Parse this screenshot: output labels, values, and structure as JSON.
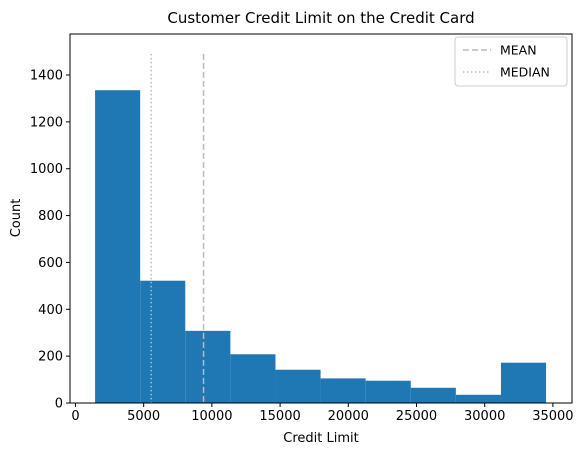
{
  "chart_data": {
    "type": "bar",
    "title": "Customer Credit Limit on the Credit Card",
    "xlabel": "Credit Limit",
    "ylabel": "Count",
    "xlim": [
      -400,
      36400
    ],
    "ylim": [
      0,
      1575
    ],
    "x_ticks": [
      0,
      5000,
      10000,
      15000,
      20000,
      25000,
      30000,
      35000
    ],
    "y_ticks": [
      0,
      200,
      400,
      600,
      800,
      1000,
      1200,
      1400
    ],
    "bins": [
      {
        "x0": 1438,
        "x1": 4744,
        "count": 1335
      },
      {
        "x0": 4744,
        "x1": 8050,
        "count": 522
      },
      {
        "x0": 8050,
        "x1": 11356,
        "count": 308
      },
      {
        "x0": 11356,
        "x1": 14662,
        "count": 208
      },
      {
        "x0": 14662,
        "x1": 17968,
        "count": 142
      },
      {
        "x0": 17968,
        "x1": 21274,
        "count": 105
      },
      {
        "x0": 21274,
        "x1": 24580,
        "count": 95
      },
      {
        "x0": 24580,
        "x1": 27886,
        "count": 65
      },
      {
        "x0": 27886,
        "x1": 31192,
        "count": 35
      },
      {
        "x0": 31192,
        "x1": 34498,
        "count": 172
      }
    ],
    "bar_color": "#1f77b4",
    "reference_lines": [
      {
        "name": "MEAN",
        "x": 9390,
        "style": "dashed",
        "color": "#bbbbbb"
      },
      {
        "name": "MEDIAN",
        "x": 5550,
        "style": "dotted",
        "color": "#bbbbbb"
      }
    ],
    "reference_line_top": 1490,
    "legend_position": "top-right",
    "grid": false
  }
}
